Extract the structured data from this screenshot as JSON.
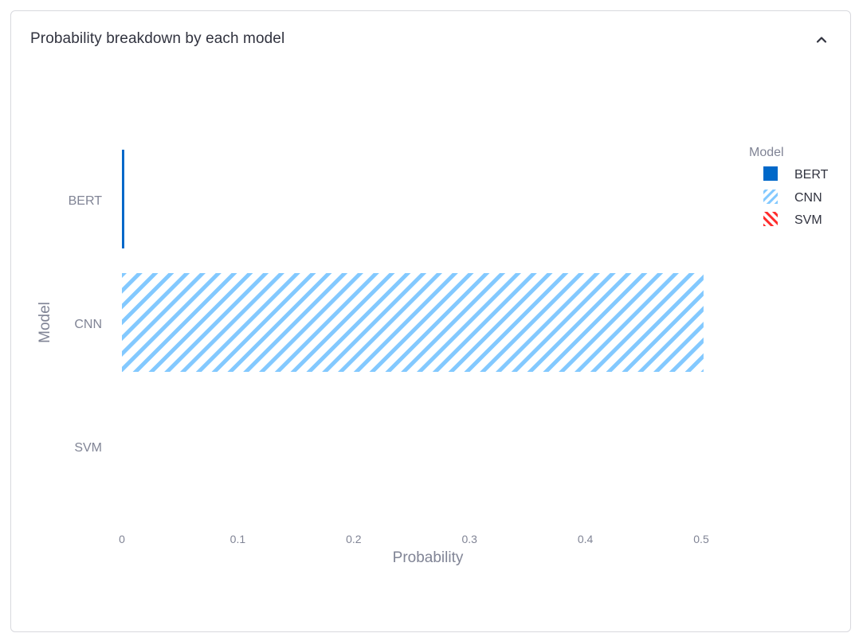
{
  "panel": {
    "title": "Probability breakdown by each model",
    "collapse_icon": "chevron-up-icon"
  },
  "colors": {
    "BERT": "#0068c9",
    "CNN": "#83c9ff",
    "SVM": "#ff2b2b",
    "axis_text": "#808495"
  },
  "chart_data": {
    "type": "bar",
    "orientation": "horizontal",
    "xlabel": "Probability",
    "ylabel": "Model",
    "categories": [
      "BERT",
      "CNN",
      "SVM"
    ],
    "values": [
      0.002,
      0.502,
      0.0
    ],
    "xlim": [
      0,
      0.55
    ],
    "xticks": [
      0,
      0.1,
      0.2,
      0.3,
      0.4,
      0.5
    ],
    "xtick_labels": [
      "0",
      "0.1",
      "0.2",
      "0.3",
      "0.4",
      "0.5"
    ],
    "grid": false,
    "legend": {
      "title": "Model",
      "placement": "top-right",
      "entries": [
        {
          "name": "BERT",
          "pattern": "solid"
        },
        {
          "name": "CNN",
          "pattern": "diagonal-hatch"
        },
        {
          "name": "SVM",
          "pattern": "reverse-diagonal-hatch"
        }
      ]
    }
  }
}
